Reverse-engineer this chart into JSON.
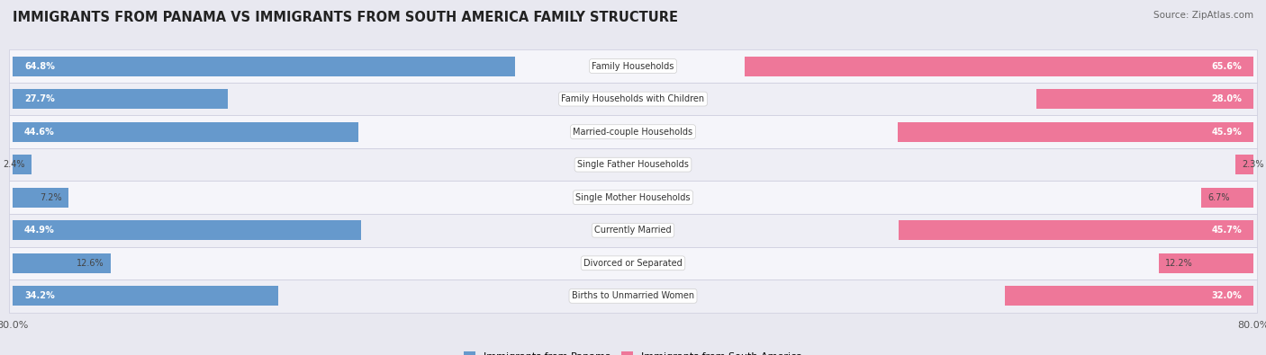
{
  "title": "IMMIGRANTS FROM PANAMA VS IMMIGRANTS FROM SOUTH AMERICA FAMILY STRUCTURE",
  "source": "Source: ZipAtlas.com",
  "categories": [
    "Family Households",
    "Family Households with Children",
    "Married-couple Households",
    "Single Father Households",
    "Single Mother Households",
    "Currently Married",
    "Divorced or Separated",
    "Births to Unmarried Women"
  ],
  "panama_values": [
    64.8,
    27.7,
    44.6,
    2.4,
    7.2,
    44.9,
    12.6,
    34.2
  ],
  "south_america_values": [
    65.6,
    28.0,
    45.9,
    2.3,
    6.7,
    45.7,
    12.2,
    32.0
  ],
  "max_val": 80.0,
  "color_panama": "#6699CC",
  "color_sa": "#EE7799",
  "bg_outer": "#E8E8F0",
  "bg_row_even": "#F0F0F7",
  "bg_row_odd": "#EAEAF2",
  "label_fontsize": 7.0,
  "title_fontsize": 10.5,
  "source_fontsize": 7.5,
  "legend_fontsize": 8.0,
  "axis_tick_fontsize": 8.0,
  "bar_height": 0.6,
  "threshold_strong": 15.0
}
